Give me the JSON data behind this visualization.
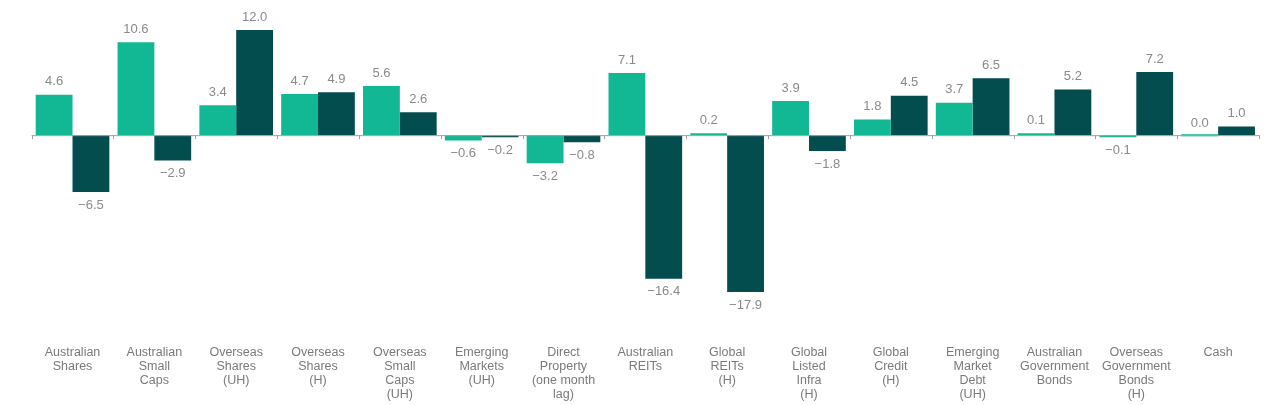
{
  "chart_data": {
    "type": "bar",
    "categories": [
      "Australian Shares",
      "Australian Small Caps",
      "Overseas Shares (UH)",
      "Overseas Shares (H)",
      "Overseas Small Caps (UH)",
      "Emerging Markets (UH)",
      "Direct Property (one month lag)",
      "Australian REITs",
      "Global REITs (H)",
      "Global Listed Infra (H)",
      "Global Credit (H)",
      "Emerging Market Debt (UH)",
      "Australian Government Bonds",
      "Overseas Government Bonds (H)",
      "Cash"
    ],
    "series": [
      {
        "color": "#12b894",
        "values": [
          4.6,
          10.6,
          3.4,
          4.7,
          5.6,
          -0.6,
          -3.2,
          7.1,
          0.2,
          3.9,
          1.8,
          3.7,
          0.1,
          -0.1,
          0.0
        ],
        "value_labels": [
          "4.6",
          "10.6",
          "3.4",
          "4.7",
          "5.6",
          "−0.6",
          "−3.2",
          "7.1",
          "0.2",
          "3.9",
          "1.8",
          "3.7",
          "0.1",
          "−0.1",
          "0.0"
        ]
      },
      {
        "color": "#034d4f",
        "values": [
          -6.5,
          -2.9,
          12.0,
          4.9,
          2.6,
          -0.2,
          -0.8,
          -16.4,
          -17.9,
          -1.8,
          4.5,
          6.5,
          5.2,
          7.2,
          1.0
        ],
        "value_labels": [
          "−6.5",
          "−2.9",
          "12.0",
          "4.9",
          "2.6",
          "−0.2",
          "−0.8",
          "−16.4",
          "−17.9",
          "−1.8",
          "4.5",
          "6.5",
          "5.2",
          "7.2",
          "1.0"
        ]
      }
    ]
  }
}
